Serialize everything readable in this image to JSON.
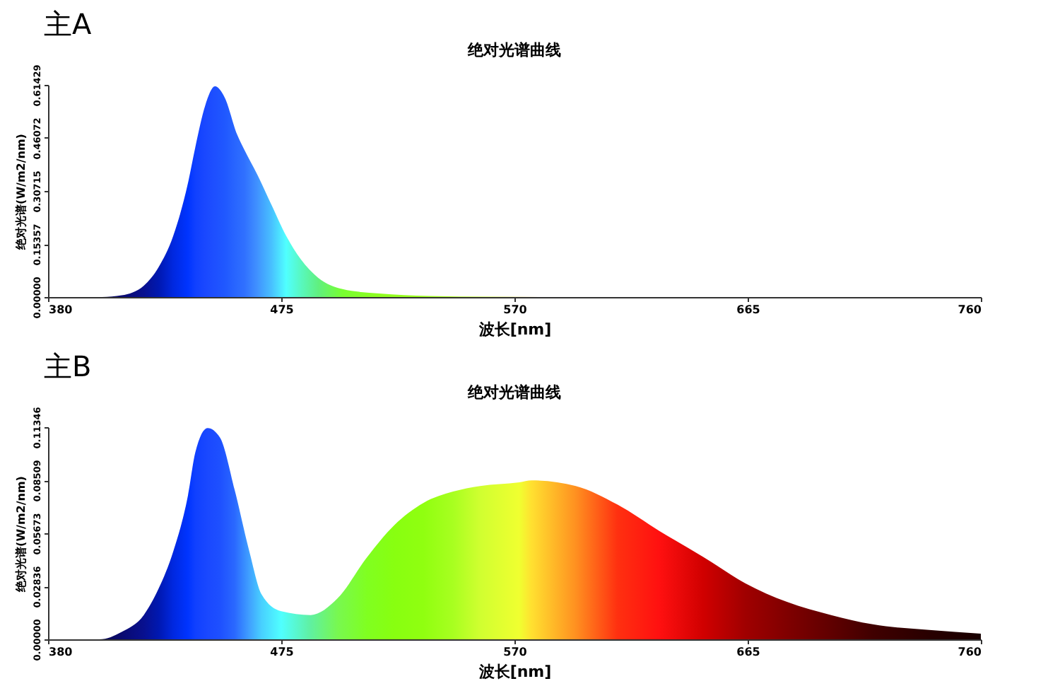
{
  "chart_data": [
    {
      "type": "area",
      "title": "主A",
      "subtitle": "绝对光谱曲线",
      "xlabel": "波长[nm]",
      "ylabel": "绝对光谱(W/m2/nm)",
      "xlim": [
        380,
        760
      ],
      "xticks": [
        380,
        475,
        570,
        665,
        760
      ],
      "ylim": [
        0,
        0.61429
      ],
      "yticks": [
        {
          "value": 0,
          "label": "0.00000"
        },
        0.15357,
        0.30715,
        0.46072,
        0.61429
      ],
      "grid": false,
      "series": [
        {
          "x": [
            380,
            402,
            410,
            419,
            425,
            431,
            437,
            440,
            444,
            448,
            452,
            457,
            460,
            465,
            471,
            477,
            483,
            490,
            500,
            515,
            535,
            560,
            600,
            700,
            760
          ],
          "values": [
            0,
            0,
            0.005,
            0.033,
            0.086,
            0.177,
            0.33,
            0.434,
            0.554,
            0.61,
            0.577,
            0.471,
            0.426,
            0.358,
            0.267,
            0.177,
            0.109,
            0.056,
            0.023,
            0.01,
            0.003,
            0.001,
            0,
            0,
            0
          ],
          "colors": [
            "#0a0a40",
            "#0a0a50",
            "#0a0a70",
            "#08108f",
            "#0018b0",
            "#0028e0",
            "#0034ff",
            "#1040ff",
            "#1a48ff",
            "#1e50ff",
            "#2058ff",
            "#2a68ff",
            "#3070ff",
            "#4090ff",
            "#48c0ff",
            "#50ffff",
            "#58f8c0",
            "#60f080",
            "#78ff30",
            "#90ff20",
            "#a0ff20",
            "#d0ff30",
            "#ff6010",
            "#500000",
            "#200000"
          ]
        }
      ]
    },
    {
      "type": "area",
      "title": "主B",
      "subtitle": "绝对光谱曲线",
      "xlabel": "波长[nm]",
      "ylabel": "绝对光谱(W/m2/nm)",
      "xlim": [
        380,
        760
      ],
      "xticks": [
        380,
        475,
        570,
        665,
        760
      ],
      "ylim": [
        0,
        0.11346
      ],
      "yticks": [
        {
          "value": 0,
          "label": "0.00000"
        },
        0.02836,
        0.05673,
        0.08509,
        0.11346
      ],
      "grid": false,
      "series": [
        {
          "x": [
            380,
            401,
            410,
            419,
            425,
            431,
            437,
            440,
            445,
            450,
            456,
            462,
            467,
            475,
            487,
            498,
            510,
            521,
            533,
            545,
            556,
            572,
            577,
            595,
            612,
            629,
            647,
            664,
            681,
            699,
            716,
            739,
            760
          ],
          "values": [
            0,
            0,
            0.004,
            0.013,
            0.027,
            0.047,
            0.077,
            0.1,
            0.113,
            0.108,
            0.08,
            0.047,
            0.024,
            0.015,
            0.013,
            0.022,
            0.044,
            0.061,
            0.073,
            0.079,
            0.082,
            0.084,
            0.085,
            0.082,
            0.072,
            0.058,
            0.044,
            0.03,
            0.02,
            0.013,
            0.008,
            0.005,
            0.003
          ],
          "colors": [
            "#0a0a40",
            "#0a0a50",
            "#0a0a70",
            "#08108f",
            "#0018b0",
            "#0028e0",
            "#0034ff",
            "#1040ff",
            "#1a48ff",
            "#1e50ff",
            "#2a68ff",
            "#40a0ff",
            "#48d0ff",
            "#50ffff",
            "#60f0a0",
            "#78f850",
            "#80ff20",
            "#88ff10",
            "#90ff10",
            "#a8ff20",
            "#d0ff30",
            "#f0ff30",
            "#ffe030",
            "#ff9020",
            "#ff3010",
            "#ff1010",
            "#d00000",
            "#a00000",
            "#800000",
            "#600000",
            "#400000",
            "#280000",
            "#180000"
          ]
        }
      ]
    }
  ]
}
